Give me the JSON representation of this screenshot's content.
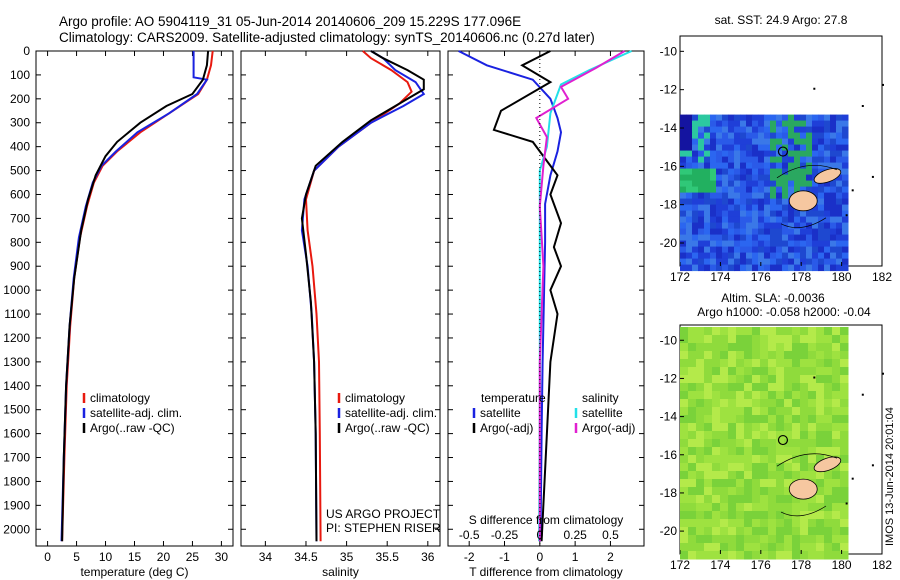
{
  "header": {
    "line1": "Argo profile: AO 5904119_31 05-Jun-2014 20140606_209 15.229S 177.096E",
    "line2": "Climatology: CARS2009. Satellite-adjusted climatology: synTS_20140606.nc (0.27d later)"
  },
  "colors": {
    "climatology": "#e8190f",
    "satellite": "#1a22e0",
    "argo": "#000000",
    "satellite_s": "#22e0e8",
    "argo_s": "#e020d0",
    "land": "#f6c7a0"
  },
  "chart_data": [
    {
      "type": "line",
      "name": "temperature-profile",
      "xlabel": "temperature (deg C)",
      "x_ticks": [
        "0",
        "5",
        "10",
        "15",
        "20",
        "25",
        "30"
      ],
      "xlim": [
        -2,
        32
      ],
      "y_ticks": [
        "0",
        "100",
        "200",
        "300",
        "400",
        "500",
        "600",
        "700",
        "800",
        "900",
        "1000",
        "1100",
        "1200",
        "1300",
        "1400",
        "1500",
        "1600",
        "1700",
        "1800",
        "1900",
        "2000"
      ],
      "ylim": [
        0,
        2070
      ],
      "y_reversed": true,
      "legend": [
        "climatology",
        "satellite-adj. clim.",
        "Argo(..raw -QC)"
      ],
      "series": [
        {
          "name": "climatology",
          "color": "#e8190f",
          "points": [
            [
              28.5,
              0
            ],
            [
              28.2,
              60
            ],
            [
              27.5,
              120
            ],
            [
              26,
              180
            ],
            [
              21,
              260
            ],
            [
              16,
              340
            ],
            [
              12,
              420
            ],
            [
              9.5,
              480
            ],
            [
              8,
              550
            ],
            [
              6.8,
              650
            ],
            [
              5.6,
              780
            ],
            [
              4.6,
              950
            ],
            [
              3.9,
              1150
            ],
            [
              3.3,
              1400
            ],
            [
              2.9,
              1700
            ],
            [
              2.5,
              2050
            ]
          ]
        },
        {
          "name": "satellite-adj. clim.",
          "color": "#1a22e0",
          "points": [
            [
              25.2,
              0
            ],
            [
              25.2,
              110
            ],
            [
              27.5,
              120
            ],
            [
              25.8,
              180
            ],
            [
              21,
              260
            ],
            [
              15.5,
              340
            ],
            [
              11.8,
              420
            ],
            [
              9.3,
              480
            ],
            [
              7.8,
              550
            ],
            [
              6.6,
              650
            ],
            [
              5.4,
              780
            ],
            [
              4.5,
              950
            ],
            [
              3.8,
              1150
            ],
            [
              3.2,
              1400
            ],
            [
              2.8,
              1700
            ],
            [
              2.4,
              2050
            ]
          ]
        },
        {
          "name": "Argo(..raw -QC)",
          "color": "#000000",
          "points": [
            [
              27.7,
              0
            ],
            [
              27.5,
              60
            ],
            [
              26.8,
              120
            ],
            [
              25,
              180
            ],
            [
              20.5,
              230
            ],
            [
              16,
              300
            ],
            [
              12,
              380
            ],
            [
              10,
              440
            ],
            [
              8.3,
              520
            ],
            [
              7,
              620
            ],
            [
              5.8,
              750
            ],
            [
              4.6,
              950
            ],
            [
              3.8,
              1150
            ],
            [
              3.2,
              1400
            ],
            [
              2.8,
              1700
            ],
            [
              2.5,
              2050
            ]
          ]
        }
      ]
    },
    {
      "type": "line",
      "name": "salinity-profile",
      "xlabel": "salinity",
      "x_ticks": [
        "34",
        "34.5",
        "35",
        "35.5",
        "36"
      ],
      "xlim": [
        33.7,
        36.15
      ],
      "ylim": [
        0,
        2070
      ],
      "y_reversed": true,
      "legend": [
        "climatology",
        "satellite-adj. clim.",
        "Argo(..raw -QC)"
      ],
      "annotation": [
        "US ARGO PROJECT",
        "PI: STEPHEN RISER"
      ],
      "series": [
        {
          "name": "climatology",
          "color": "#e8190f",
          "points": [
            [
              35.2,
              0
            ],
            [
              35.3,
              30
            ],
            [
              35.55,
              80
            ],
            [
              35.75,
              130
            ],
            [
              35.8,
              170
            ],
            [
              35.65,
              220
            ],
            [
              35.3,
              300
            ],
            [
              34.9,
              400
            ],
            [
              34.6,
              500
            ],
            [
              34.5,
              620
            ],
            [
              34.52,
              750
            ],
            [
              34.58,
              900
            ],
            [
              34.63,
              1100
            ],
            [
              34.66,
              1300
            ],
            [
              34.67,
              1600
            ],
            [
              34.68,
              2050
            ]
          ]
        },
        {
          "name": "satellite-adj. clim.",
          "color": "#1a22e0",
          "points": [
            [
              35.3,
              0
            ],
            [
              35.45,
              30
            ],
            [
              35.6,
              80
            ],
            [
              35.85,
              130
            ],
            [
              35.95,
              180
            ],
            [
              35.7,
              230
            ],
            [
              35.3,
              300
            ],
            [
              34.9,
              400
            ],
            [
              34.6,
              500
            ],
            [
              34.48,
              620
            ],
            [
              34.45,
              750
            ],
            [
              34.52,
              900
            ],
            [
              34.57,
              1100
            ],
            [
              34.6,
              1300
            ],
            [
              34.62,
              1600
            ],
            [
              34.63,
              2050
            ]
          ]
        },
        {
          "name": "Argo(..raw -QC)",
          "color": "#000000",
          "points": [
            [
              35.3,
              0
            ],
            [
              35.45,
              30
            ],
            [
              35.75,
              80
            ],
            [
              35.95,
              120
            ],
            [
              35.95,
              160
            ],
            [
              35.7,
              210
            ],
            [
              35.3,
              290
            ],
            [
              34.95,
              380
            ],
            [
              34.62,
              480
            ],
            [
              34.5,
              600
            ],
            [
              34.45,
              700
            ],
            [
              34.5,
              850
            ],
            [
              34.56,
              1050
            ],
            [
              34.6,
              1300
            ],
            [
              34.62,
              1600
            ],
            [
              34.63,
              2050
            ]
          ]
        }
      ]
    },
    {
      "type": "line",
      "name": "difference-profile",
      "xlabel": "T difference from climatology",
      "x_ticks": [
        "-2",
        "-1",
        "0",
        "1",
        "2"
      ],
      "xlim": [
        -2.6,
        2.95
      ],
      "top_label": "S difference from climatology",
      "top_ticks": [
        "-0.5",
        "-0.25",
        "0",
        "0.25",
        "0.5"
      ],
      "ylim": [
        0,
        2070
      ],
      "y_reversed": true,
      "legend_left": {
        "title": "temperature",
        "items": [
          "satellite",
          "Argo(-adj)"
        ]
      },
      "legend_right": {
        "title": "salinity",
        "items": [
          "satellite",
          "Argo(-adj)"
        ]
      },
      "series": [
        {
          "name": "T satellite",
          "color": "#1a22e0",
          "points": [
            [
              -2.3,
              0
            ],
            [
              -1.5,
              60
            ],
            [
              -0.2,
              120
            ],
            [
              0.3,
              200
            ],
            [
              0.5,
              280
            ],
            [
              0.6,
              340
            ],
            [
              0.5,
              420
            ],
            [
              0.3,
              520
            ],
            [
              0.15,
              640
            ],
            [
              0.15,
              800
            ],
            [
              0.12,
              1000
            ],
            [
              0.08,
              1300
            ],
            [
              0.05,
              1600
            ],
            [
              0.02,
              2050
            ]
          ]
        },
        {
          "name": "T Argo(-adj)",
          "color": "#000000",
          "points": [
            [
              0.3,
              0
            ],
            [
              -0.5,
              60
            ],
            [
              0.3,
              130
            ],
            [
              -1.1,
              250
            ],
            [
              -1.3,
              330
            ],
            [
              -0.2,
              380
            ],
            [
              0.2,
              460
            ],
            [
              0.5,
              520
            ],
            [
              0.3,
              600
            ],
            [
              0.6,
              720
            ],
            [
              0.4,
              820
            ],
            [
              0.6,
              900
            ],
            [
              0.3,
              1000
            ],
            [
              0.5,
              1100
            ],
            [
              0.3,
              1300
            ],
            [
              0.2,
              1600
            ],
            [
              0.05,
              2050
            ]
          ]
        },
        {
          "name": "S satellite",
          "color": "#22e0e8",
          "points": [
            [
              2.6,
              0
            ],
            [
              1.4,
              80
            ],
            [
              0.6,
              140
            ],
            [
              0.3,
              260
            ],
            [
              0.2,
              400
            ],
            [
              0.0,
              500
            ],
            [
              0.0,
              650
            ],
            [
              0.0,
              900
            ],
            [
              0.0,
              1200
            ],
            [
              0.0,
              1500
            ],
            [
              -0.02,
              2050
            ]
          ]
        },
        {
          "name": "S Argo(-adj)",
          "color": "#e020d0",
          "points": [
            [
              2.4,
              0
            ],
            [
              1.6,
              70
            ],
            [
              0.6,
              150
            ],
            [
              0.8,
              200
            ],
            [
              -0.1,
              280
            ],
            [
              0.2,
              360
            ],
            [
              0.1,
              480
            ],
            [
              0.0,
              650
            ],
            [
              0.1,
              900
            ],
            [
              0.0,
              1300
            ],
            [
              0.0,
              1700
            ],
            [
              0.0,
              2050
            ]
          ]
        }
      ]
    },
    {
      "type": "heatmap",
      "name": "sst-map",
      "title": "sat. SST: 24.9  Argo: 27.8",
      "x_ticks": [
        "172",
        "174",
        "176",
        "178",
        "180",
        "182"
      ],
      "xlim": [
        172,
        182
      ],
      "y_ticks": [
        "-10",
        "-12",
        "-14",
        "-16",
        "-18",
        "-20"
      ],
      "ylim": [
        -21.2,
        -9.2
      ]
    },
    {
      "type": "heatmap",
      "name": "sla-map",
      "title_lines": [
        "Altim. SLA: -0.0036",
        "Argo h1000: -0.058 h2000: -0.04"
      ],
      "x_ticks": [
        "172",
        "174",
        "176",
        "178",
        "180",
        "182"
      ],
      "xlim": [
        172,
        182
      ],
      "y_ticks": [
        "-10",
        "-12",
        "-14",
        "-16",
        "-18",
        "-20"
      ],
      "ylim": [
        -21.2,
        -9.2
      ],
      "side_label": "IMOS 13-Jun-2014 20:01:04"
    }
  ]
}
